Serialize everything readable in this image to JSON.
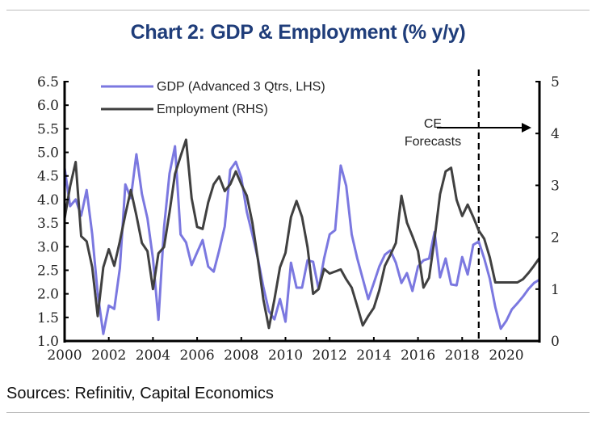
{
  "chart_data": {
    "type": "line",
    "title": "Chart 2: GDP & Employment (% y/y)",
    "source": "Sources: Refinitiv, Capital Economics",
    "xlabel": "",
    "ylabel_left": "",
    "ylabel_right": "",
    "xlim": [
      2000,
      2021.5
    ],
    "ylim_left": [
      1.0,
      6.5
    ],
    "ylim_right": [
      0,
      5
    ],
    "x_ticks": [
      2000,
      2002,
      2004,
      2006,
      2008,
      2010,
      2012,
      2014,
      2016,
      2018,
      2020
    ],
    "x_tick_labels": [
      "2000",
      "2002",
      "2004",
      "2006",
      "2008",
      "2010",
      "2012",
      "2014",
      "2016",
      "2018",
      "2020"
    ],
    "y_left_ticks": [
      "1.0",
      "1.5",
      "2.0",
      "2.5",
      "3.0",
      "3.5",
      "4.0",
      "4.5",
      "5.0",
      "5.5",
      "6.0",
      "6.5"
    ],
    "y_right_ticks": [
      "0",
      "1",
      "2",
      "3",
      "4",
      "5"
    ],
    "grid": false,
    "legend_position": "top-left",
    "forecast_start": 2018.75,
    "annotation": {
      "line1": "CE",
      "line2": "Forecasts"
    },
    "x": [
      2000.0,
      2000.25,
      2000.5,
      2000.75,
      2001.0,
      2001.25,
      2001.5,
      2001.75,
      2002.0,
      2002.25,
      2002.5,
      2002.75,
      2003.0,
      2003.25,
      2003.5,
      2003.75,
      2004.0,
      2004.25,
      2004.5,
      2004.75,
      2005.0,
      2005.25,
      2005.5,
      2005.75,
      2006.0,
      2006.25,
      2006.5,
      2006.75,
      2007.0,
      2007.25,
      2007.5,
      2007.75,
      2008.0,
      2008.25,
      2008.5,
      2008.75,
      2009.0,
      2009.25,
      2009.5,
      2009.75,
      2010.0,
      2010.25,
      2010.5,
      2010.75,
      2011.0,
      2011.25,
      2011.5,
      2011.75,
      2012.0,
      2012.25,
      2012.5,
      2012.75,
      2013.0,
      2013.25,
      2013.5,
      2013.75,
      2014.0,
      2014.25,
      2014.5,
      2014.75,
      2015.0,
      2015.25,
      2015.5,
      2015.75,
      2016.0,
      2016.25,
      2016.5,
      2016.75,
      2017.0,
      2017.25,
      2017.5,
      2017.75,
      2018.0,
      2018.25,
      2018.5,
      2018.75,
      2019.0,
      2019.25,
      2019.5,
      2019.75,
      2020.0,
      2020.25,
      2020.5,
      2020.75,
      2021.0,
      2021.25,
      2021.5
    ],
    "series": [
      {
        "name": "GDP (Advanced 3 Qtrs, LHS)",
        "axis": "left",
        "color": "#7b78e0",
        "values": [
          4.67,
          3.86,
          4.0,
          3.66,
          4.2,
          3.26,
          2.0,
          1.15,
          1.75,
          1.68,
          2.54,
          4.32,
          4.03,
          4.96,
          4.12,
          3.6,
          2.75,
          1.45,
          3.4,
          4.55,
          5.13,
          3.26,
          3.09,
          2.61,
          2.88,
          3.14,
          2.58,
          2.47,
          2.92,
          3.43,
          4.63,
          4.8,
          4.46,
          3.74,
          3.26,
          2.75,
          2.15,
          1.63,
          1.46,
          1.89,
          1.41,
          2.66,
          2.13,
          2.13,
          2.71,
          2.68,
          2.1,
          2.75,
          3.26,
          3.35,
          4.72,
          4.29,
          3.26,
          2.75,
          2.32,
          1.89,
          2.23,
          2.58,
          2.83,
          2.92,
          2.66,
          2.23,
          2.44,
          2.06,
          2.58,
          2.71,
          2.75,
          3.31,
          2.35,
          2.75,
          2.2,
          2.18,
          2.78,
          2.41,
          3.04,
          3.11,
          2.75,
          2.32,
          1.72,
          1.26,
          1.43,
          1.67,
          1.8,
          1.94,
          2.1,
          2.23,
          2.3
        ]
      },
      {
        "name": "Employment (RHS)",
        "axis": "right",
        "color": "#404040",
        "values": [
          2.36,
          2.98,
          3.45,
          2.02,
          1.92,
          1.42,
          0.48,
          1.42,
          1.77,
          1.45,
          1.92,
          2.44,
          2.91,
          2.42,
          1.89,
          1.73,
          1.0,
          1.69,
          1.81,
          2.48,
          3.22,
          3.56,
          3.88,
          2.75,
          2.2,
          2.16,
          2.67,
          3.02,
          3.17,
          2.89,
          3.02,
          3.27,
          3.02,
          2.8,
          2.28,
          1.58,
          0.8,
          0.25,
          0.8,
          1.42,
          1.7,
          2.39,
          2.7,
          2.39,
          1.81,
          0.91,
          1.0,
          1.39,
          1.3,
          1.34,
          1.38,
          1.19,
          1.03,
          0.67,
          0.3,
          0.48,
          0.64,
          0.98,
          1.45,
          1.66,
          1.89,
          2.8,
          2.28,
          2.02,
          1.73,
          1.03,
          1.22,
          1.97,
          2.83,
          3.27,
          3.34,
          2.72,
          2.41,
          2.63,
          2.39,
          2.13,
          1.97,
          1.61,
          1.13,
          1.13,
          1.13,
          1.13,
          1.13,
          1.19,
          1.31,
          1.45,
          1.6
        ]
      }
    ]
  }
}
